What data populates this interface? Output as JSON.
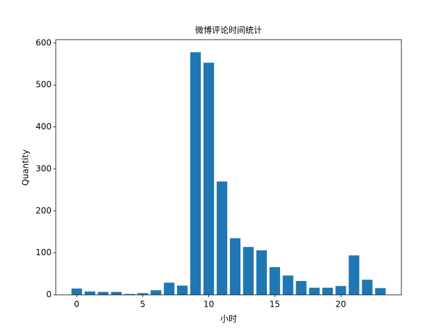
{
  "chart_data": {
    "type": "bar",
    "title": "微博评论时间统计",
    "x_label": "小时",
    "y_label": "Quantity",
    "x": [
      0,
      1,
      2,
      3,
      4,
      5,
      6,
      7,
      8,
      9,
      10,
      11,
      12,
      13,
      14,
      15,
      16,
      17,
      18,
      19,
      20,
      21,
      22,
      23
    ],
    "values": [
      15,
      8,
      7,
      7,
      2,
      4,
      11,
      29,
      22,
      578,
      553,
      270,
      135,
      114,
      106,
      66,
      46,
      33,
      17,
      17,
      21,
      94,
      36,
      16
    ],
    "color": "#1f77b4",
    "xlim": [
      -1.59,
      24.59
    ],
    "xticks": [
      0,
      5,
      10,
      15,
      20
    ],
    "ylim": [
      0,
      608
    ],
    "yticks": [
      0,
      100,
      200,
      300,
      400,
      500,
      600
    ]
  }
}
